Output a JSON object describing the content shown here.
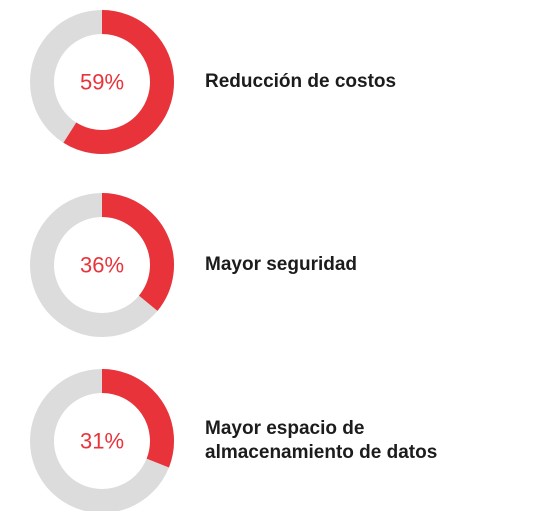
{
  "chart_data": [
    {
      "type": "donut",
      "title": "Reducción de costos",
      "values": [
        59
      ],
      "value_labels": [
        "59%"
      ],
      "ylim": [
        0,
        100
      ],
      "color": "#e8333a",
      "track_color": "#dcdcdc"
    },
    {
      "type": "donut",
      "title": "Mayor seguridad",
      "values": [
        36
      ],
      "value_labels": [
        "36%"
      ],
      "ylim": [
        0,
        100
      ],
      "color": "#e8333a",
      "track_color": "#dcdcdc"
    },
    {
      "type": "donut",
      "title": "Mayor espacio de almacenamiento de datos",
      "values": [
        31
      ],
      "value_labels": [
        "31%"
      ],
      "ylim": [
        0,
        100
      ],
      "color": "#e8333a",
      "track_color": "#dcdcdc"
    }
  ]
}
